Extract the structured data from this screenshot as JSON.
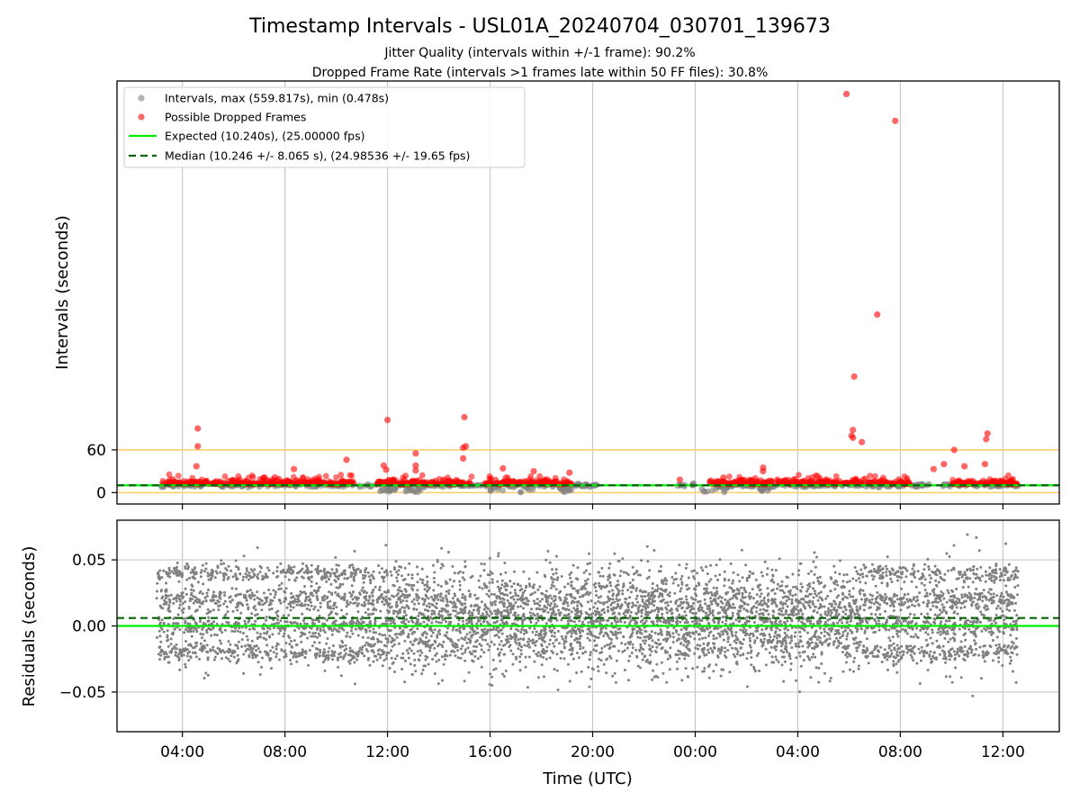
{
  "chart_data": {
    "type": "scatter",
    "title": "Timestamp Intervals - USL01A_20240704_030701_139673",
    "subtitles": [
      "Jitter Quality (intervals within +/-1 frame): 90.2%",
      "Dropped Frame Rate (intervals >1 frames late within 50 FF files): 30.8%"
    ],
    "xlabel": "Time (UTC)",
    "x_tick_labels": [
      "04:00",
      "08:00",
      "12:00",
      "16:00",
      "20:00",
      "00:00",
      "04:00",
      "08:00",
      "12:00"
    ],
    "x_range_hours": [
      1.45,
      38.2
    ],
    "x_ticks_hours": [
      4,
      8,
      12,
      16,
      20,
      24,
      28,
      32,
      36
    ],
    "grid": "x and y",
    "legend_position": "upper left",
    "colors": {
      "intervals": "#808080",
      "dropped": "#ff0000",
      "expected": "#00ee00",
      "median": "#006400",
      "threshold": "#ffcc66",
      "grid": "#c8c8c8"
    },
    "top_panel": {
      "ylabel": "Intervals (seconds)",
      "ylim": [
        -16,
        578
      ],
      "y_ticks": [
        0,
        60
      ],
      "y_tick_labels": [
        "0",
        "60"
      ],
      "threshold_lines": [
        0,
        60
      ],
      "expected_interval": 10.24,
      "median_interval": 10.246,
      "legend": [
        "Intervals, max (559.817s), min (0.478s)",
        "Possible Dropped Frames",
        "Expected (10.240s), (25.00000 fps)",
        "Median (10.246 +/- 8.065 s), (24.98536 +/- 19.65 fps)"
      ],
      "data_span_hours": [
        3.0,
        36.6
      ],
      "dropped_outliers": [
        {
          "x": 4.6,
          "y": 90
        },
        {
          "x": 4.6,
          "y": 65
        },
        {
          "x": 4.55,
          "y": 37
        },
        {
          "x": 8.35,
          "y": 33
        },
        {
          "x": 10.4,
          "y": 46
        },
        {
          "x": 12.0,
          "y": 102
        },
        {
          "x": 11.85,
          "y": 38
        },
        {
          "x": 11.95,
          "y": 32
        },
        {
          "x": 13.1,
          "y": 55
        },
        {
          "x": 13.1,
          "y": 38
        },
        {
          "x": 13.1,
          "y": 31
        },
        {
          "x": 15.0,
          "y": 106
        },
        {
          "x": 15.05,
          "y": 65
        },
        {
          "x": 14.95,
          "y": 63
        },
        {
          "x": 14.95,
          "y": 48
        },
        {
          "x": 16.5,
          "y": 34
        },
        {
          "x": 17.7,
          "y": 30
        },
        {
          "x": 19.1,
          "y": 28
        },
        {
          "x": 23.4,
          "y": 18
        },
        {
          "x": 25.1,
          "y": 21
        },
        {
          "x": 26.65,
          "y": 35
        },
        {
          "x": 26.65,
          "y": 30
        },
        {
          "x": 29.9,
          "y": 559.817
        },
        {
          "x": 31.8,
          "y": 522
        },
        {
          "x": 31.1,
          "y": 250
        },
        {
          "x": 30.2,
          "y": 163
        },
        {
          "x": 30.15,
          "y": 88
        },
        {
          "x": 30.1,
          "y": 80
        },
        {
          "x": 30.15,
          "y": 77
        },
        {
          "x": 30.5,
          "y": 71
        },
        {
          "x": 33.3,
          "y": 33
        },
        {
          "x": 33.7,
          "y": 40
        },
        {
          "x": 34.1,
          "y": 60
        },
        {
          "x": 35.4,
          "y": 83
        },
        {
          "x": 35.35,
          "y": 75
        },
        {
          "x": 35.3,
          "y": 40
        },
        {
          "x": 34.5,
          "y": 37
        }
      ]
    },
    "bottom_panel": {
      "ylabel": "Residuals (seconds)",
      "ylim": [
        -0.08,
        0.08
      ],
      "y_ticks": [
        -0.05,
        0.0,
        0.05
      ],
      "y_tick_labels": [
        "−0.05",
        "0.00",
        "0.05"
      ],
      "expected_residual": 0.0,
      "median_residual": 0.006,
      "residual_bands": [
        -0.02,
        0.0,
        0.02,
        0.04
      ],
      "data_span_hours": [
        3.0,
        36.6
      ]
    }
  }
}
